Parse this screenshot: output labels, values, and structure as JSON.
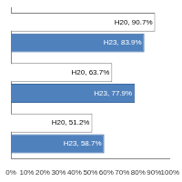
{
  "chart_data": {
    "type": "bar",
    "orientation": "horizontal",
    "categories": [
      null,
      null,
      null
    ],
    "series": [
      {
        "name": "H20",
        "color": "#ffffff",
        "values": [
          90.7,
          63.7,
          51.2
        ],
        "value_labels": [
          "H20, 90.7%",
          "H20, 63.7%",
          "H20, 51.2%"
        ]
      },
      {
        "name": "H23",
        "color": "#4f81bd",
        "values": [
          83.9,
          77.9,
          58.7
        ],
        "value_labels": [
          "H23, 83.9%",
          "H23, 77.9%",
          "H23, 58.7%"
        ]
      }
    ],
    "xlim": [
      0,
      100
    ],
    "xticks": [
      {
        "value": 0,
        "label": "0%"
      },
      {
        "value": 10,
        "label": "10%"
      },
      {
        "value": 20,
        "label": "20%"
      },
      {
        "value": 30,
        "label": "30%"
      },
      {
        "value": 40,
        "label": "40%"
      },
      {
        "value": 50,
        "label": "50%"
      },
      {
        "value": 60,
        "label": "60%"
      },
      {
        "value": 70,
        "label": "70%"
      },
      {
        "value": 80,
        "label": "80%"
      },
      {
        "value": 90,
        "label": "90%"
      },
      {
        "value": 100,
        "label": "100%"
      }
    ],
    "grid": false,
    "data_labels": true,
    "tick_labels": "x"
  }
}
